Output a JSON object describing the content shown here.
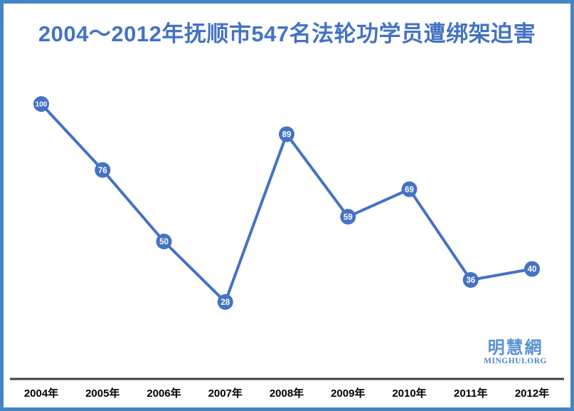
{
  "chart_data": {
    "type": "line",
    "title": "2004～2012年抚顺市547名法轮功学员遭绑架迫害",
    "categories": [
      "2004年",
      "2005年",
      "2006年",
      "2007年",
      "2008年",
      "2009年",
      "2010年",
      "2011年",
      "2012年"
    ],
    "values": [
      100,
      76,
      50,
      28,
      89,
      59,
      69,
      36,
      40
    ],
    "xlabel": "",
    "ylabel": "",
    "ylim": [
      0,
      100
    ],
    "grid": false,
    "legend": "none",
    "data_labels": "on-point"
  },
  "watermark": {
    "logo_text": "明慧網",
    "org_text": "MINGHUI.ORG"
  },
  "colors": {
    "line": "#4472c4",
    "marker_fill": "#4472c4",
    "marker_label": "#ffffff",
    "title": "#4472c4",
    "axis": "#3f3f3f",
    "x_labels": "#000000",
    "border": "#4286c6",
    "watermark": "#5b92d2"
  }
}
